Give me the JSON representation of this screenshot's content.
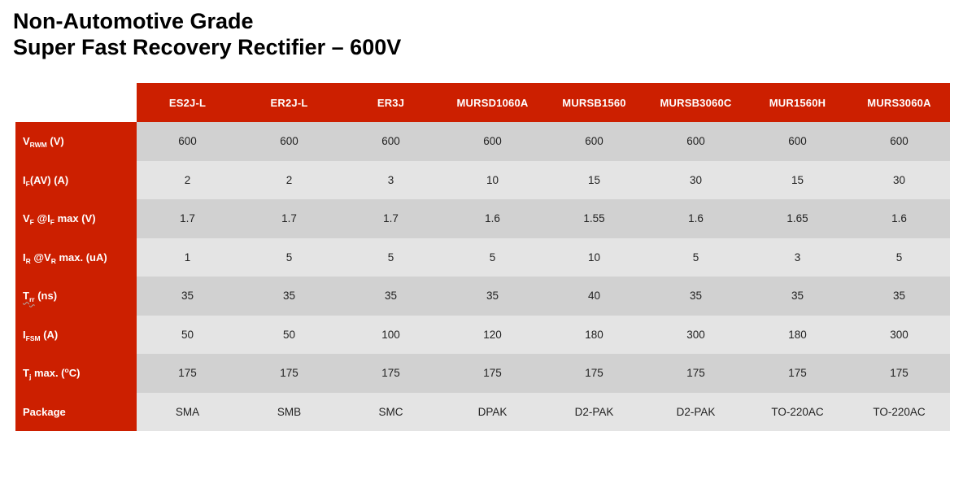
{
  "title": {
    "line1": "Non-Automotive Grade",
    "line2": "Super Fast Recovery Rectifier – 600V"
  },
  "colors": {
    "accent_red": "#cc1f00",
    "row_dark": "#d1d1d1",
    "row_light": "#e4e4e4",
    "cell_text": "#222222",
    "header_text": "#ffffff"
  },
  "table": {
    "columns": [
      "ES2J-L",
      "ER2J-L",
      "ER3J",
      "MURSD1060A",
      "MURSB1560",
      "MURSB3060C",
      "MUR1560H",
      "MURS3060A"
    ],
    "rows": [
      {
        "label": {
          "base": "V",
          "sub": "RWM",
          "mid": "",
          "sub2": "",
          "sup": "",
          "tail": " (V)"
        },
        "values": [
          "600",
          "600",
          "600",
          "600",
          "600",
          "600",
          "600",
          "600"
        ]
      },
      {
        "label": {
          "base": "I",
          "sub": "F",
          "mid": "",
          "sub2": "",
          "sup": "",
          "tail": "(AV) (A)"
        },
        "values": [
          "2",
          "2",
          "3",
          "10",
          "15",
          "30",
          "15",
          "30"
        ]
      },
      {
        "label": {
          "base": "V",
          "sub": "F",
          "mid": " @I",
          "sub2": "F",
          "sup": "",
          "tail": " max (V)"
        },
        "values": [
          "1.7",
          "1.7",
          "1.7",
          "1.6",
          "1.55",
          "1.6",
          "1.65",
          "1.6"
        ]
      },
      {
        "label": {
          "base": "I",
          "sub": "R",
          "mid": " @V",
          "sub2": "R",
          "sup": "",
          "tail": " max. (uA)"
        },
        "values": [
          "1",
          "5",
          "5",
          "5",
          "10",
          "5",
          "3",
          "5"
        ]
      },
      {
        "label": {
          "base": "T",
          "sub": "rr",
          "mid": "",
          "sub2": "",
          "sup": "",
          "tail": " (ns)"
        },
        "values": [
          "35",
          "35",
          "35",
          "35",
          "40",
          "35",
          "35",
          "35"
        ]
      },
      {
        "label": {
          "base": "I",
          "sub": "FSM",
          "mid": "",
          "sub2": "",
          "sup": "",
          "tail": " (A)"
        },
        "values": [
          "50",
          "50",
          "100",
          "120",
          "180",
          "300",
          "180",
          "300"
        ]
      },
      {
        "label": {
          "base": "T",
          "sub": "j",
          "mid": " max. (",
          "sub2": "",
          "sup": "o",
          "tail": "C)"
        },
        "values": [
          "175",
          "175",
          "175",
          "175",
          "175",
          "175",
          "175",
          "175"
        ]
      },
      {
        "label": {
          "base": "Package",
          "sub": "",
          "mid": "",
          "sub2": "",
          "sup": "",
          "tail": ""
        },
        "values": [
          "SMA",
          "SMB",
          "SMC",
          "DPAK",
          "D2-PAK",
          "D2-PAK",
          "TO-220AC",
          "TO-220AC"
        ]
      }
    ]
  }
}
